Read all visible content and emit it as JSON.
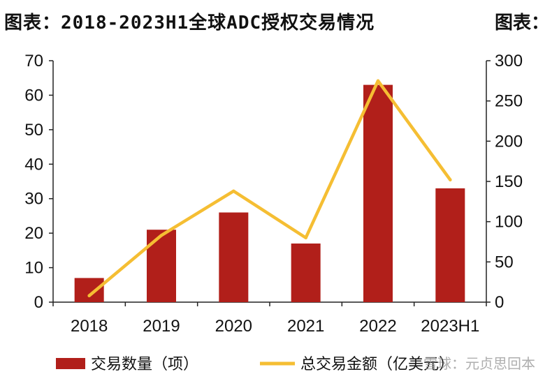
{
  "title": "图表：2018-2023H1全球ADC授权交易情况",
  "title_right": "图表：",
  "watermark": "雪球：元贞思回本",
  "colors": {
    "bar": "#b11f1a",
    "line": "#f5be33",
    "axis": "#222222"
  },
  "chart_data": {
    "type": "bar",
    "title": "图表：2018-2023H1全球ADC授权交易情况",
    "categories": [
      "2018",
      "2019",
      "2020",
      "2021",
      "2022",
      "2023H1"
    ],
    "series": [
      {
        "name": "交易数量（项）",
        "type": "bar",
        "axis": "left",
        "values": [
          7,
          21,
          26,
          17,
          63,
          33
        ]
      },
      {
        "name": "总交易金额（亿美元）",
        "type": "line",
        "axis": "right",
        "values": [
          8,
          83,
          138,
          80,
          275,
          152
        ]
      }
    ],
    "y_left": {
      "ylim": [
        0,
        70
      ],
      "ticks": [
        "0",
        "10",
        "20",
        "30",
        "40",
        "50",
        "60",
        "70"
      ]
    },
    "y_right": {
      "ylim": [
        0,
        300
      ],
      "ticks": [
        "0",
        "50",
        "100",
        "150",
        "200",
        "250",
        "300"
      ]
    },
    "grid": false,
    "legend": "bottom"
  }
}
